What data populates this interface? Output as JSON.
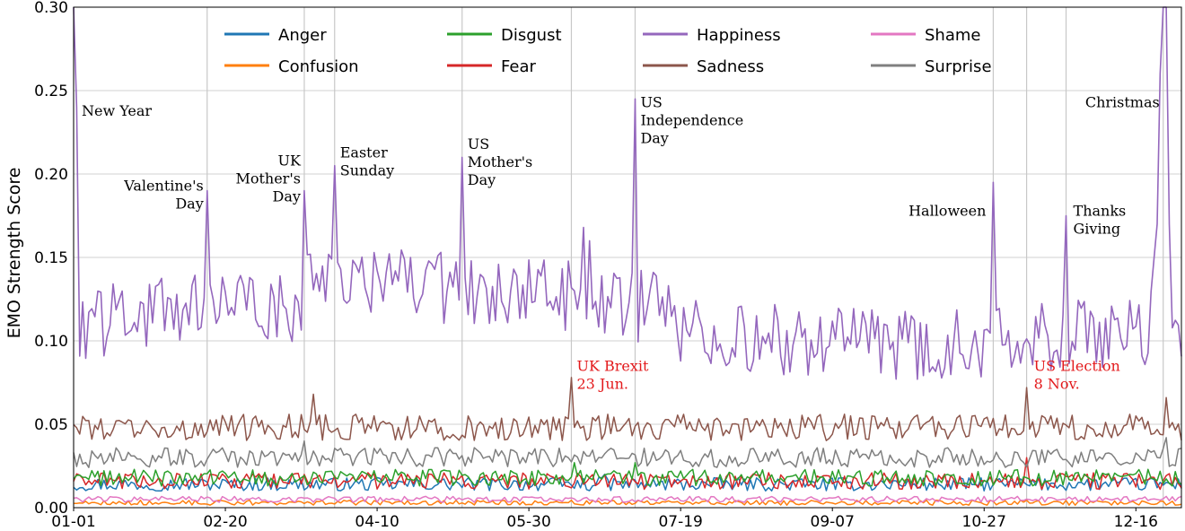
{
  "chart_data": {
    "type": "line",
    "title": "",
    "xlabel": "",
    "ylabel": "EMO  Strength  Score",
    "ylim": [
      0,
      0.3
    ],
    "xlim": [
      0,
      365
    ],
    "grid": true,
    "legend_position": "top",
    "xticks": [
      {
        "day": 0,
        "label": "01-01"
      },
      {
        "day": 50,
        "label": "02-20"
      },
      {
        "day": 100,
        "label": "04-10"
      },
      {
        "day": 150,
        "label": "05-30"
      },
      {
        "day": 200,
        "label": "07-19"
      },
      {
        "day": 250,
        "label": "09-07"
      },
      {
        "day": 300,
        "label": "10-27"
      },
      {
        "day": 350,
        "label": "12-16"
      }
    ],
    "yticks": [
      {
        "value": 0.0,
        "label": "0.00"
      },
      {
        "value": 0.05,
        "label": "0.05"
      },
      {
        "value": 0.1,
        "label": "0.10"
      },
      {
        "value": 0.15,
        "label": "0.15"
      },
      {
        "value": 0.2,
        "label": "0.20"
      },
      {
        "value": 0.25,
        "label": "0.25"
      },
      {
        "value": 0.3,
        "label": "0.30"
      }
    ],
    "event_lines": [
      0,
      44,
      76,
      86,
      128,
      164,
      185,
      303,
      314,
      327,
      359
    ],
    "series": [
      {
        "name": "Anger",
        "color": "#1f77b4",
        "base": 0.014,
        "amp": 0.004,
        "peaks": [
          [
            175,
            0.02
          ]
        ]
      },
      {
        "name": "Confusion",
        "color": "#ff7f0e",
        "base": 0.003,
        "amp": 0.0015,
        "peaks": []
      },
      {
        "name": "Disgust",
        "color": "#2ca02c",
        "base": 0.018,
        "amp": 0.005,
        "peaks": [
          [
            165,
            0.027
          ],
          [
            185,
            0.027
          ]
        ]
      },
      {
        "name": "Fear",
        "color": "#d62728",
        "base": 0.016,
        "amp": 0.005,
        "peaks": [
          [
            314,
            0.03
          ]
        ]
      },
      {
        "name": "Happiness",
        "color": "#9467bd",
        "base": 0.11,
        "amp": 0.022,
        "peaks": [
          [
            0,
            0.3
          ],
          [
            1,
            0.24
          ],
          [
            44,
            0.19
          ],
          [
            76,
            0.19
          ],
          [
            86,
            0.205
          ],
          [
            128,
            0.21
          ],
          [
            165,
            0.13
          ],
          [
            168,
            0.168
          ],
          [
            170,
            0.16
          ],
          [
            185,
            0.245
          ],
          [
            303,
            0.195
          ],
          [
            327,
            0.175
          ],
          [
            356,
            0.15
          ],
          [
            357,
            0.17
          ],
          [
            358,
            0.26
          ],
          [
            359,
            0.3
          ],
          [
            360,
            0.3
          ],
          [
            361,
            0.17
          ]
        ]
      },
      {
        "name": "Sadness",
        "color": "#8c564b",
        "base": 0.048,
        "amp": 0.008,
        "peaks": [
          [
            79,
            0.068
          ],
          [
            164,
            0.078
          ],
          [
            314,
            0.072
          ],
          [
            360,
            0.066
          ]
        ]
      },
      {
        "name": "Shame",
        "color": "#e377c2",
        "base": 0.005,
        "amp": 0.0018,
        "peaks": []
      },
      {
        "name": "Surprise",
        "color": "#7f7f7f",
        "base": 0.03,
        "amp": 0.006,
        "peaks": [
          [
            76,
            0.04
          ],
          [
            360,
            0.042
          ]
        ]
      }
    ],
    "legend": [
      {
        "label": "Anger",
        "color": "#1f77b4"
      },
      {
        "label": "Confusion",
        "color": "#ff7f0e"
      },
      {
        "label": "Disgust",
        "color": "#2ca02c"
      },
      {
        "label": "Fear",
        "color": "#d62728"
      },
      {
        "label": "Happiness",
        "color": "#9467bd"
      },
      {
        "label": "Sadness",
        "color": "#8c564b"
      },
      {
        "label": "Shame",
        "color": "#e377c2"
      },
      {
        "label": "Surprise",
        "color": "#7f7f7f"
      }
    ],
    "annotations": [
      {
        "lines": [
          "New Year"
        ],
        "day": 0,
        "y": 0.235,
        "color": "#000000"
      },
      {
        "lines": [
          "Valentine's",
          "Day"
        ],
        "day": 44,
        "y": 0.19,
        "color": "#000000"
      },
      {
        "lines": [
          "UK",
          "Mother's",
          "Day"
        ],
        "day": 76,
        "y": 0.205,
        "color": "#000000"
      },
      {
        "lines": [
          "Easter",
          "Sunday"
        ],
        "day": 86,
        "y": 0.21,
        "color": "#000000"
      },
      {
        "lines": [
          "US",
          "Mother's",
          "Day"
        ],
        "day": 128,
        "y": 0.215,
        "color": "#000000"
      },
      {
        "lines": [
          "US",
          "Independence",
          "Day"
        ],
        "day": 185,
        "y": 0.24,
        "color": "#000000"
      },
      {
        "lines": [
          "Halloween"
        ],
        "day": 303,
        "y": 0.175,
        "color": "#000000"
      },
      {
        "lines": [
          "Thanks",
          "Giving"
        ],
        "day": 327,
        "y": 0.175,
        "color": "#000000"
      },
      {
        "lines": [
          "Christmas"
        ],
        "day": 359,
        "y": 0.24,
        "color": "#000000"
      },
      {
        "lines": [
          "UK Brexit",
          "23 Jun."
        ],
        "day": 164,
        "y": 0.082,
        "color": "#e31a1c"
      },
      {
        "lines": [
          "US Election",
          "8 Nov."
        ],
        "day": 314,
        "y": 0.082,
        "color": "#e31a1c"
      }
    ]
  }
}
